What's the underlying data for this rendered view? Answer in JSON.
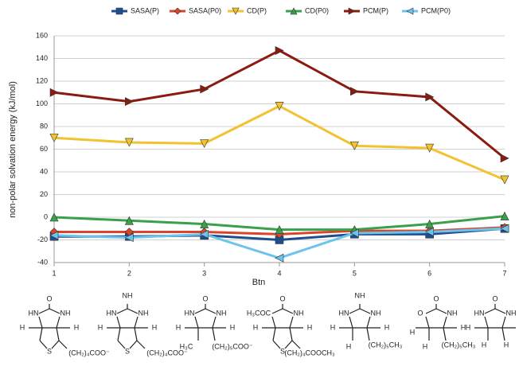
{
  "chart_data": {
    "type": "line",
    "x_label": "Btn",
    "y_label": "non-polar solvation energy (kJ/mol)",
    "x": [
      1,
      2,
      3,
      4,
      5,
      6,
      7
    ],
    "xlim": [
      1,
      7
    ],
    "xticks": [
      1,
      2,
      3,
      4,
      5,
      6,
      7
    ],
    "ylim": [
      -40,
      160
    ],
    "yticks": [
      -40,
      -20,
      0,
      20,
      40,
      60,
      80,
      100,
      120,
      140,
      160
    ],
    "grid": true,
    "legend": "top",
    "series": [
      {
        "name": "SASA(P)",
        "color": "#1f4e8c",
        "marker": "square",
        "values": [
          -17,
          -17,
          -16,
          -20,
          -15,
          -15,
          -10
        ]
      },
      {
        "name": "SASA(P0)",
        "color": "#d9452a",
        "marker": "diamond",
        "values": [
          -13,
          -13,
          -13,
          -15,
          -12,
          -12,
          -9
        ]
      },
      {
        "name": "CD(P)",
        "color": "#f2c230",
        "marker": "triangle-down",
        "values": [
          70,
          66,
          65,
          98,
          63,
          61,
          33
        ]
      },
      {
        "name": "CD(P0)",
        "color": "#3aa04a",
        "marker": "triangle-up",
        "values": [
          0,
          -3,
          -6,
          -11,
          -11,
          -6,
          1
        ]
      },
      {
        "name": "PCM(P)",
        "color": "#8b1a10",
        "marker": "triangle-right",
        "values": [
          110,
          102,
          113,
          147,
          111,
          106,
          52
        ]
      },
      {
        "name": "PCM(P0)",
        "color": "#6cc4ec",
        "marker": "triangle-left",
        "values": [
          -16,
          -18,
          -15,
          -36,
          -14,
          -13,
          -10
        ]
      }
    ],
    "structures": [
      {
        "labels": [
          "O",
          "HN",
          "NH",
          "H",
          "H",
          "S",
          "(CH₂)₄COO⁻"
        ]
      },
      {
        "labels": [
          "NH",
          "HN",
          "NH",
          "H",
          "H",
          "S",
          "(CH₂)₄COO⁻"
        ]
      },
      {
        "labels": [
          "O",
          "HN",
          "NH",
          "H",
          "H",
          "H₃C",
          "(CH₂)₅COO⁻"
        ]
      },
      {
        "labels": [
          "O",
          "H₃COC",
          "NH",
          "H",
          "H",
          "S",
          "(CH₂)₄COOCH₃"
        ]
      },
      {
        "labels": [
          "NH",
          "HN",
          "NH",
          "H",
          "H",
          "H",
          "(CH₂)₅CH₃"
        ]
      },
      {
        "labels": [
          "O",
          "O",
          "NH",
          "H",
          "H",
          "H",
          "(CH₂)₅CH₃"
        ]
      },
      {
        "labels": [
          "O",
          "HN",
          "NH",
          "H",
          "H",
          "H",
          "H"
        ]
      }
    ]
  }
}
